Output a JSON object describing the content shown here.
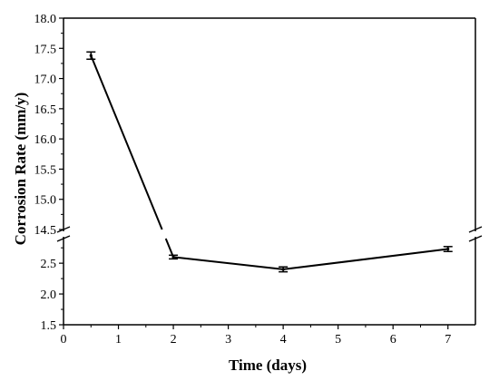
{
  "chart_data": {
    "type": "line",
    "title": "",
    "xlabel": "Time (days)",
    "ylabel": "Corrosion Rate (mm/y)",
    "grid": false,
    "legend": "none",
    "line_color": "#000000",
    "broken_y_axis": true,
    "x_ticks": [
      "0",
      "1",
      "2",
      "3",
      "4",
      "5",
      "6",
      "7"
    ],
    "xlim": [
      0,
      7.5
    ],
    "y_upper_ticks": [
      "14.5",
      "15.0",
      "15.5",
      "16.0",
      "16.5",
      "17.0",
      "17.5",
      "18.0"
    ],
    "y_upper_range": [
      14.5,
      18.0
    ],
    "y_lower_ticks": [
      "1.5",
      "2.0",
      "2.5"
    ],
    "y_lower_range": [
      1.5,
      2.9
    ],
    "series": [
      {
        "x": [
          0.5,
          2,
          4,
          7
        ],
        "y": [
          17.38,
          2.6,
          2.4,
          2.73
        ],
        "error": [
          0.06,
          0.03,
          0.04,
          0.04
        ]
      }
    ]
  }
}
